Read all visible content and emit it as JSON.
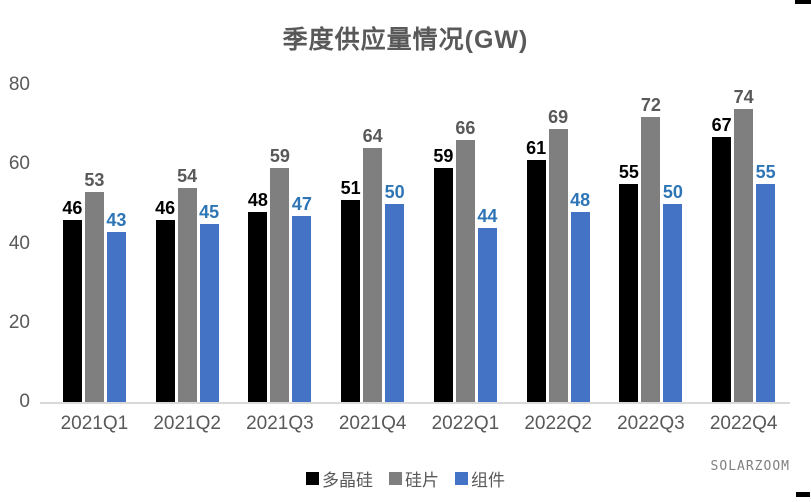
{
  "title": "季度供应量情况(GW)",
  "watermark": "SOLARZOOM",
  "chart_data": {
    "type": "bar",
    "title": "季度供应量情况(GW)",
    "categories": [
      "2021Q1",
      "2021Q2",
      "2021Q3",
      "2021Q4",
      "2022Q1",
      "2022Q2",
      "2022Q3",
      "2022Q4"
    ],
    "series": [
      {
        "name": "多晶硅",
        "color": "#000000",
        "label_color": "#000000",
        "values": [
          46,
          46,
          48,
          51,
          59,
          61,
          55,
          67
        ]
      },
      {
        "name": "硅片",
        "color": "#7f7f7f",
        "label_color": "#595959",
        "values": [
          53,
          54,
          59,
          64,
          66,
          69,
          72,
          74
        ]
      },
      {
        "name": "组件",
        "color": "#4472c4",
        "label_color": "#2e75b6",
        "values": [
          43,
          45,
          47,
          50,
          44,
          48,
          50,
          55
        ]
      }
    ],
    "xlabel": "",
    "ylabel": "",
    "ylim": [
      0,
      80
    ],
    "yticks": [
      0,
      20,
      40,
      60,
      80
    ],
    "grid": false,
    "legend_position": "bottom",
    "data_labels": true,
    "axis_line_color": "#d9d9d9",
    "axis_text_color": "#595959"
  }
}
